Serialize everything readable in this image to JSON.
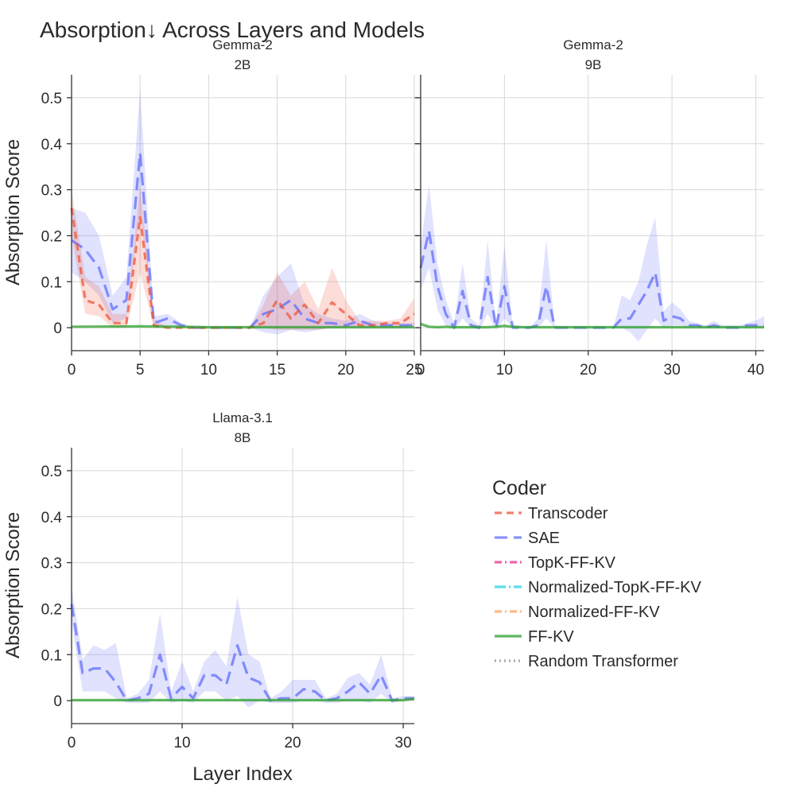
{
  "title": "Absorption↓ Across Layers and Models",
  "x_axis_title": "Layer Index",
  "y_axis_title": "Absorption Score",
  "legend": {
    "title": "Coder",
    "items": [
      {
        "name": "Transcoder",
        "color": "#ef553b",
        "dash": "dash"
      },
      {
        "name": "SAE",
        "color": "#636efa",
        "dash": "longdash"
      },
      {
        "name": "TopK-FF-KV",
        "color": "#e8308c",
        "dash": "dashdot"
      },
      {
        "name": "Normalized-TopK-FF-KV",
        "color": "#22d3e6",
        "dash": "longdashdot"
      },
      {
        "name": "Normalized-FF-KV",
        "color": "#ffa15a",
        "dash": "dashdot"
      },
      {
        "name": "FF-KV",
        "color": "#2ca02c",
        "dash": "solid"
      },
      {
        "name": "Random Transformer",
        "color": "#8c8c8c",
        "dash": "dot"
      }
    ]
  },
  "chart_data": [
    {
      "type": "line",
      "subtitle": [
        "Gemma-2",
        "2B"
      ],
      "xlim": [
        0,
        25
      ],
      "ylim": [
        -0.05,
        0.55
      ],
      "xticks": [
        0,
        5,
        10,
        15,
        20,
        25
      ],
      "yticks": [
        0,
        0.1,
        0.2,
        0.3,
        0.4,
        0.5
      ],
      "ytick_labels": [
        "0",
        "0.1",
        "0.2",
        "0.3",
        "0.4",
        "0.5"
      ],
      "series": [
        {
          "name": "SAE",
          "x": [
            0,
            1,
            2,
            3,
            4,
            5,
            6,
            7,
            8,
            9,
            10,
            11,
            12,
            13,
            14,
            15,
            16,
            17,
            18,
            19,
            20,
            21,
            22,
            23,
            24,
            25
          ],
          "y": [
            0.19,
            0.17,
            0.13,
            0.04,
            0.06,
            0.38,
            0.01,
            0.02,
            0.005,
            0,
            0,
            0,
            0,
            0,
            0.03,
            0.04,
            0.06,
            0.02,
            0.01,
            0.01,
            0.005,
            0.015,
            0.005,
            0.005,
            0.005,
            0.005
          ],
          "lower": [
            0.12,
            0.1,
            0.07,
            0.01,
            0.02,
            0.25,
            0,
            0.005,
            0,
            0,
            0,
            0,
            0,
            0,
            -0.01,
            -0.015,
            -0.005,
            -0.01,
            -0.005,
            0,
            0,
            0,
            0,
            0,
            0,
            0
          ],
          "upper": [
            0.26,
            0.25,
            0.2,
            0.07,
            0.11,
            0.52,
            0.025,
            0.03,
            0.01,
            0,
            0,
            0,
            0,
            0,
            0.07,
            0.11,
            0.14,
            0.05,
            0.03,
            0.02,
            0.015,
            0.03,
            0.015,
            0.01,
            0.01,
            0.01
          ]
        },
        {
          "name": "Transcoder",
          "x": [
            0,
            1,
            2,
            3,
            4,
            5,
            6,
            7,
            8,
            9,
            10,
            11,
            12,
            13,
            14,
            15,
            16,
            17,
            18,
            19,
            20,
            21,
            22,
            23,
            24,
            25
          ],
          "y": [
            0.26,
            0.06,
            0.05,
            0.01,
            0.01,
            0.24,
            0.005,
            0,
            0,
            0,
            0,
            0,
            0,
            0,
            0.01,
            0.06,
            0.02,
            0.05,
            0.01,
            0.055,
            0.03,
            0.005,
            0.005,
            0.01,
            0.01,
            0.03
          ],
          "lower": [
            0.2,
            0.03,
            0.025,
            0,
            0,
            0.12,
            0,
            0,
            0,
            0,
            0,
            0,
            0,
            0,
            0,
            -0.005,
            -0.005,
            -0.005,
            -0.005,
            0,
            0,
            0,
            0,
            0,
            0,
            0.005
          ],
          "upper": [
            0.3,
            0.11,
            0.09,
            0.03,
            0.03,
            0.31,
            0.02,
            0,
            0,
            0,
            0,
            0,
            0,
            0,
            0.05,
            0.12,
            0.07,
            0.1,
            0.04,
            0.13,
            0.06,
            0.015,
            0.015,
            0.015,
            0.02,
            0.065
          ]
        },
        {
          "name": "FF-KV",
          "x": [
            0,
            5,
            10,
            15,
            20,
            25
          ],
          "y": [
            0.002,
            0.003,
            0.001,
            0.001,
            0.001,
            0.001
          ]
        }
      ]
    },
    {
      "type": "line",
      "subtitle": [
        "Gemma-2",
        "9B"
      ],
      "xlim": [
        0,
        41
      ],
      "ylim": [
        -0.05,
        0.55
      ],
      "xticks": [
        0,
        10,
        20,
        30,
        40
      ],
      "yticks": [
        0,
        0.1,
        0.2,
        0.3,
        0.4,
        0.5
      ],
      "series": [
        {
          "name": "SAE",
          "x": [
            0,
            1,
            2,
            3,
            4,
            5,
            6,
            7,
            8,
            9,
            10,
            11,
            12,
            13,
            14,
            15,
            16,
            17,
            18,
            19,
            20,
            21,
            22,
            23,
            24,
            25,
            26,
            27,
            28,
            29,
            30,
            31,
            32,
            33,
            34,
            35,
            36,
            37,
            38,
            39,
            40,
            41
          ],
          "y": [
            0.13,
            0.21,
            0.09,
            0.03,
            0,
            0.08,
            0.005,
            0,
            0.11,
            0,
            0.09,
            0,
            0,
            0,
            0.005,
            0.09,
            0,
            0,
            0,
            0,
            0,
            0,
            0,
            0,
            0.02,
            0.02,
            0.05,
            0.08,
            0.12,
            0.015,
            0.025,
            0.02,
            0.005,
            0.005,
            0,
            0.005,
            0,
            0,
            0,
            0.005,
            0.005,
            0.005
          ],
          "lower": [
            0.08,
            0.13,
            0.04,
            0.005,
            -0.005,
            0.02,
            0,
            -0.005,
            0.03,
            -0.005,
            0.02,
            0,
            0,
            0,
            0,
            0.02,
            0,
            0,
            0,
            0,
            0,
            0,
            0,
            0,
            0,
            -0.01,
            -0.03,
            -0.005,
            0.02,
            0,
            0.005,
            0.005,
            0,
            0,
            0,
            0,
            0,
            0,
            0,
            0,
            0,
            0
          ],
          "upper": [
            0.18,
            0.31,
            0.14,
            0.06,
            0.01,
            0.14,
            0.02,
            0.005,
            0.19,
            0.005,
            0.18,
            0.005,
            0.005,
            0,
            0.02,
            0.19,
            0.005,
            0,
            0,
            0,
            0,
            0,
            0,
            0,
            0.07,
            0.06,
            0.1,
            0.18,
            0.24,
            0.035,
            0.055,
            0.04,
            0.015,
            0.01,
            0.005,
            0.015,
            0.005,
            0.005,
            0.005,
            0.01,
            0.015,
            0.025
          ]
        },
        {
          "name": "FF-KV",
          "x": [
            0,
            1,
            2,
            3,
            4,
            5,
            8,
            9,
            10,
            11,
            12,
            20,
            30,
            40,
            41
          ],
          "y": [
            0.008,
            0.002,
            0.001,
            0.002,
            0.001,
            0.001,
            0.001,
            0.002,
            0.004,
            0.002,
            0.001,
            0.001,
            0.001,
            0.001,
            0.001
          ]
        }
      ]
    },
    {
      "type": "line",
      "subtitle": [
        "Llama-3.1",
        "8B"
      ],
      "xlim": [
        0,
        31
      ],
      "ylim": [
        -0.05,
        0.55
      ],
      "xticks": [
        0,
        10,
        20,
        30
      ],
      "yticks": [
        0,
        0.1,
        0.2,
        0.3,
        0.4,
        0.5
      ],
      "ytick_labels": [
        "0",
        "0.1",
        "0.2",
        "0.3",
        "0.4",
        "0.5"
      ],
      "series": [
        {
          "name": "SAE",
          "x": [
            0,
            1,
            2,
            3,
            4,
            5,
            6,
            7,
            8,
            9,
            10,
            11,
            12,
            13,
            14,
            15,
            16,
            17,
            18,
            19,
            20,
            21,
            22,
            23,
            24,
            25,
            26,
            27,
            28,
            29,
            30,
            31
          ],
          "y": [
            0.21,
            0.06,
            0.07,
            0.07,
            0.04,
            0,
            0.005,
            0.015,
            0.1,
            0.005,
            0.03,
            0.005,
            0.055,
            0.055,
            0.035,
            0.12,
            0.05,
            0.04,
            0,
            0.005,
            0.005,
            0.025,
            0.02,
            0,
            0.005,
            0.02,
            0.04,
            0.015,
            0.055,
            0,
            0.005,
            0.005
          ],
          "lower": [
            0.17,
            0.02,
            0.02,
            0.02,
            0.005,
            -0.005,
            -0.005,
            -0.005,
            0.02,
            -0.005,
            0,
            -0.005,
            0.02,
            0.02,
            0,
            0.01,
            -0.015,
            0,
            -0.005,
            -0.005,
            -0.005,
            0,
            0,
            -0.005,
            -0.005,
            0,
            0,
            -0.005,
            0.015,
            -0.005,
            0,
            0
          ],
          "upper": [
            0.25,
            0.09,
            0.12,
            0.11,
            0.125,
            0.005,
            0.015,
            0.045,
            0.19,
            0.02,
            0.085,
            0.02,
            0.085,
            0.11,
            0.075,
            0.225,
            0.1,
            0.085,
            0.005,
            0.02,
            0.045,
            0.045,
            0.045,
            0.005,
            0.015,
            0.05,
            0.06,
            0.035,
            0.1,
            0.005,
            0.01,
            0.01
          ]
        },
        {
          "name": "FF-KV",
          "x": [
            0,
            5,
            10,
            15,
            20,
            25,
            30,
            31
          ],
          "y": [
            0.001,
            0.001,
            0.001,
            0.001,
            0.001,
            0.001,
            0.001,
            0.004
          ]
        }
      ]
    }
  ]
}
